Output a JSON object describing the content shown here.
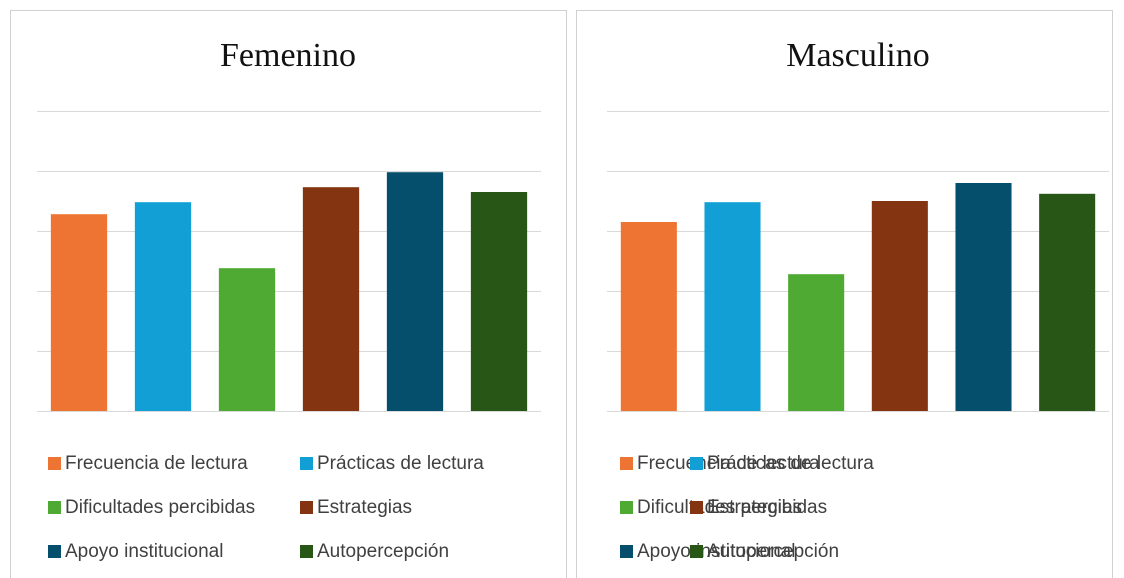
{
  "chart_data": [
    {
      "type": "bar",
      "title": "Femenino",
      "categories": [
        "Frecuencia de lectura",
        "Prácticas de lectura",
        "Dificultades percibidas",
        "Estrategias",
        "Apoyo institucional",
        "Autopercepción"
      ],
      "values": [
        3.28,
        3.48,
        2.38,
        3.73,
        3.98,
        3.65
      ],
      "colors": [
        "#ed7432",
        "#129fd6",
        "#4eaa32",
        "#843411",
        "#064f6c",
        "#285616"
      ],
      "ylim": [
        0,
        5
      ],
      "yticks": [
        0,
        1,
        2,
        3,
        4,
        5
      ],
      "grid": true
    },
    {
      "type": "bar",
      "title": "Masculino",
      "categories": [
        "Frecuencia de lectura",
        "Prácticas de lectura",
        "Dificultades percibidas",
        "Estrategias",
        "Apoyo institucional",
        "Autopercepción"
      ],
      "values": [
        3.15,
        3.48,
        2.28,
        3.5,
        3.8,
        3.62
      ],
      "colors": [
        "#ed7432",
        "#129fd6",
        "#4eaa32",
        "#843411",
        "#064f6c",
        "#285616"
      ],
      "ylim": [
        0,
        5
      ],
      "yticks": [
        0,
        1,
        2,
        3,
        4,
        5
      ],
      "grid": true
    }
  ]
}
